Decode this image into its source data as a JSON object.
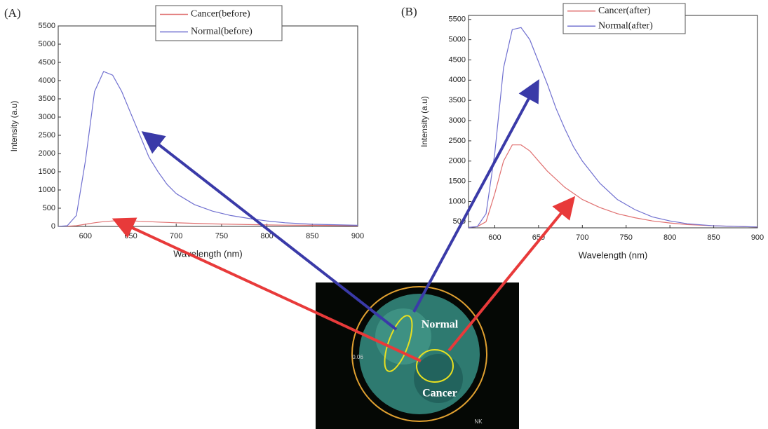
{
  "chart_data": [
    {
      "type": "line",
      "panel": "(A)",
      "xlabel": "Wavelength (nm)",
      "ylabel": "Intensity (a.u)",
      "x": [
        570,
        580,
        590,
        600,
        610,
        620,
        630,
        640,
        650,
        660,
        670,
        680,
        690,
        700,
        720,
        740,
        760,
        780,
        800,
        820,
        850,
        900
      ],
      "series": [
        {
          "name": "Cancer(before)",
          "color": "#e07070",
          "values": [
            0,
            5,
            20,
            60,
            100,
            130,
            150,
            160,
            155,
            140,
            130,
            120,
            110,
            100,
            85,
            70,
            60,
            50,
            40,
            35,
            30,
            20
          ]
        },
        {
          "name": "Normal(before)",
          "color": "#7070d0",
          "values": [
            0,
            20,
            300,
            1800,
            3700,
            4250,
            4150,
            3700,
            3100,
            2500,
            1900,
            1500,
            1150,
            900,
            600,
            420,
            300,
            220,
            150,
            100,
            60,
            30
          ]
        }
      ],
      "xlim": [
        570,
        900
      ],
      "ylim": [
        0,
        5500
      ],
      "xticks": [
        600,
        650,
        700,
        750,
        800,
        850,
        900
      ],
      "yticks": [
        0,
        500,
        1000,
        1500,
        2000,
        2500,
        3000,
        3500,
        4000,
        4500,
        5000,
        5500
      ],
      "grid": false
    },
    {
      "type": "line",
      "panel": "(B)",
      "xlabel": "Wavelength (nm)",
      "ylabel": "Intensity (a.u)",
      "x": [
        570,
        580,
        590,
        600,
        610,
        620,
        630,
        640,
        650,
        660,
        670,
        680,
        690,
        700,
        720,
        740,
        760,
        780,
        800,
        820,
        850,
        900
      ],
      "series": [
        {
          "name": "Cancer(after)",
          "color": "#e07070",
          "values": [
            360,
            380,
            500,
            1200,
            2000,
            2400,
            2400,
            2250,
            2000,
            1750,
            1550,
            1350,
            1200,
            1050,
            850,
            700,
            600,
            520,
            470,
            430,
            400,
            370
          ]
        },
        {
          "name": "Normal(after)",
          "color": "#7070d0",
          "values": [
            360,
            380,
            700,
            2200,
            4300,
            5250,
            5300,
            5000,
            4450,
            3900,
            3300,
            2800,
            2350,
            2000,
            1450,
            1050,
            800,
            620,
            520,
            450,
            400,
            370
          ]
        }
      ],
      "xlim": [
        570,
        900
      ],
      "ylim": [
        350,
        5600
      ],
      "xticks": [
        600,
        650,
        700,
        750,
        800,
        850,
        900
      ],
      "yticks": [
        500,
        1000,
        1500,
        2000,
        2500,
        3000,
        3500,
        4000,
        4500,
        5000,
        5500
      ],
      "grid": false
    }
  ],
  "image": {
    "normal_label": "Normal",
    "cancer_label": "Cancer",
    "scale_label": "0.06",
    "corner_label": "NK"
  }
}
